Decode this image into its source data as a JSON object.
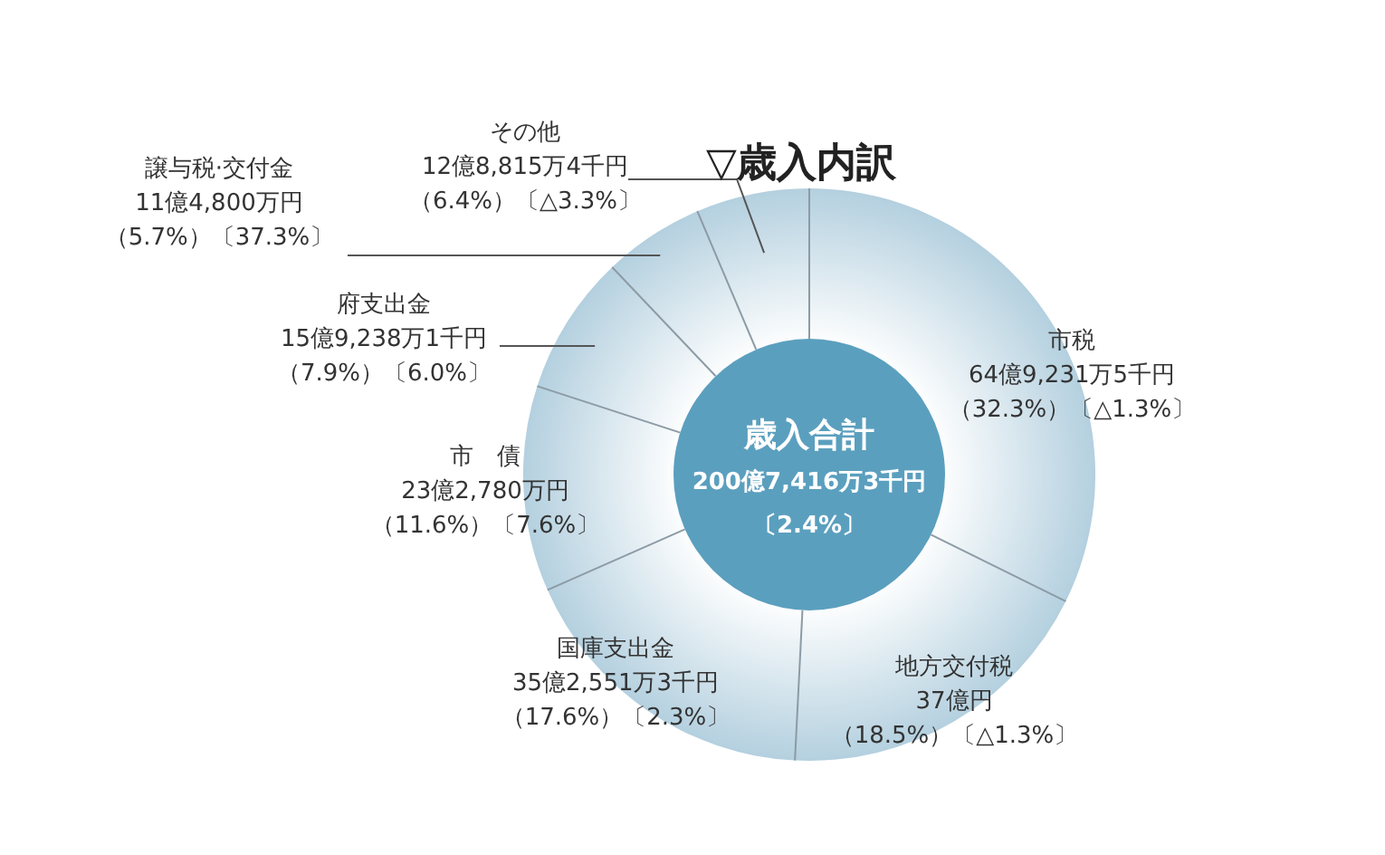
{
  "chart_data": {
    "type": "donut",
    "title": "▽歳入内訳",
    "categories": [
      "市税",
      "地方交付税",
      "国庫支出金",
      "市　債",
      "府支出金",
      "譲与税·交付金",
      "その他"
    ],
    "values": [
      32.3,
      18.5,
      17.6,
      11.6,
      7.9,
      5.7,
      6.4
    ],
    "colors": [
      "#b4d0df",
      "#b4d0df",
      "#b4d0df",
      "#b4d0df",
      "#b4d0df",
      "#b4d0df",
      "#b4d0df"
    ],
    "value_labels": [
      "64億9,231万5千円（32.3%）〔△1.3%〕",
      "37億円（18.5%）〔△1.3%〕",
      "35億2,551万3千円（17.6%）〔2.3%〕",
      "23億2,780万円（11.6%）〔7.6%〕",
      "15億9,238万1千円（7.9%）〔6.0%〕",
      "11億4,800万円（5.7%）〔37.3%〕",
      "12億8,815万4千円（6.4%）〔△3.3%〕"
    ],
    "annotations": [
      "歳入合計",
      "200億7,416万3千円",
      "〔2.4%〕"
    ]
  }
}
